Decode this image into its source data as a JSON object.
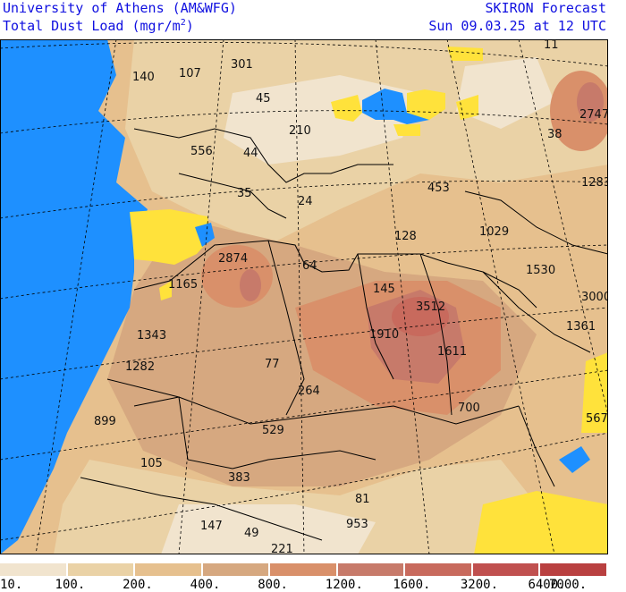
{
  "header": {
    "institution": "University of Athens (AM&WFG)",
    "product_prefix": "Total Dust Load (mgr/m",
    "product_sup": "2",
    "product_suffix": ")",
    "model": "SKIRON Forecast",
    "valid_time": "Sun 09.03.25 at 12 UTC"
  },
  "legend": {
    "labels": [
      "10.",
      "100.",
      "200.",
      "400.",
      "800.",
      "1200.",
      "1600.",
      "3200.",
      "6400.",
      "7000."
    ],
    "colors": [
      "#f1e4ce",
      "#ead2a6",
      "#e6c08e",
      "#d6a880",
      "#d9906a",
      "#c77a6a",
      "#c86a5d",
      "#c0504f",
      "#b94040"
    ]
  },
  "colors": {
    "sea": "#1e90ff",
    "no_data_yellow": "#ffe23b",
    "border": "#000000",
    "header_text": "#1010e0"
  },
  "map_values": [
    "11",
    "301",
    "107",
    "140",
    "45",
    "2747",
    "210",
    "38",
    "556",
    "44",
    "1283",
    "453",
    "35",
    "24",
    "128",
    "1029",
    "2874",
    "64",
    "1530",
    "1165",
    "145",
    "3000",
    "3512",
    "1361",
    "1343",
    "1910",
    "1611",
    "1282",
    "77",
    "264",
    "700",
    "567",
    "899",
    "529",
    "105",
    "383",
    "81",
    "147",
    "49",
    "953",
    "221"
  ]
}
